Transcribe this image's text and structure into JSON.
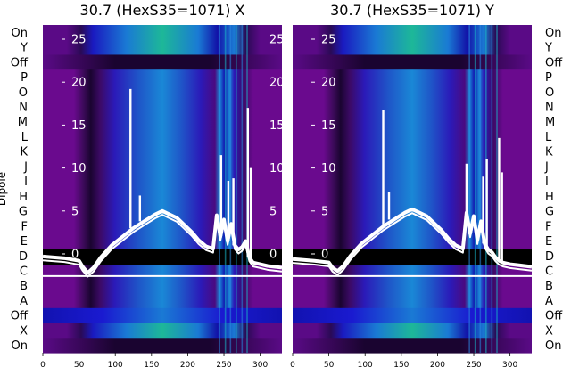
{
  "chart_data": [
    {
      "type": "heatmap",
      "title": "30.7 (HexS35=1071) X",
      "ylabel": "Dipole",
      "x_ticks": [
        0,
        50,
        100,
        150,
        200,
        250,
        300
      ],
      "xlim": [
        0,
        330
      ],
      "inner_y_ticks": [
        0,
        5,
        10,
        15,
        20,
        25
      ],
      "inner_ylim": [
        -1.5,
        27
      ],
      "dipole_labels": [
        "On",
        "Y",
        "Off",
        "P",
        "O",
        "N",
        "M",
        "L",
        "K",
        "J",
        "I",
        "H",
        "G",
        "F",
        "E",
        "D",
        "C",
        "B",
        "A",
        "Off",
        "X",
        "On"
      ],
      "trace_points_x": [
        0,
        30,
        50,
        55,
        62,
        70,
        80,
        95,
        110,
        125,
        140,
        155,
        165,
        175,
        185,
        195,
        205,
        215,
        225,
        235,
        240,
        245,
        250,
        255,
        260,
        265,
        270,
        275,
        280,
        285,
        290,
        300,
        310,
        330
      ],
      "trace_points_y": [
        -0.3,
        -0.5,
        -0.8,
        -1.5,
        -2.2,
        -1.6,
        -0.4,
        1.0,
        2.0,
        3.0,
        3.8,
        4.6,
        5.0,
        4.6,
        4.2,
        3.4,
        2.6,
        1.6,
        0.9,
        0.6,
        4.5,
        2.0,
        4.0,
        1.5,
        3.5,
        1.0,
        0.5,
        0.8,
        1.5,
        -0.4,
        -1.0,
        -1.2,
        -1.4,
        -1.6
      ],
      "spikes": [
        {
          "x": 121,
          "y": 19.2
        },
        {
          "x": 134,
          "y": 6.8
        },
        {
          "x": 246,
          "y": 11.5
        },
        {
          "x": 256,
          "y": 8.5
        },
        {
          "x": 263,
          "y": 8.8
        },
        {
          "x": 283,
          "y": 17.0
        },
        {
          "x": 287,
          "y": 10.0
        }
      ]
    },
    {
      "type": "heatmap",
      "title": "30.7 (HexS35=1071) Y",
      "x_ticks": [
        0,
        50,
        100,
        150,
        200,
        250,
        300
      ],
      "xlim": [
        0,
        330
      ],
      "inner_y_ticks": [
        0,
        5,
        10,
        15,
        20,
        25
      ],
      "inner_ylim": [
        -1.5,
        27
      ],
      "dipole_labels": [
        "On",
        "Y",
        "Off",
        "P",
        "O",
        "N",
        "M",
        "L",
        "K",
        "J",
        "I",
        "H",
        "G",
        "F",
        "E",
        "D",
        "C",
        "B",
        "A",
        "Off",
        "X",
        "On"
      ],
      "trace_points_x": [
        0,
        30,
        50,
        55,
        62,
        70,
        80,
        95,
        110,
        125,
        140,
        155,
        165,
        175,
        185,
        195,
        205,
        215,
        225,
        235,
        240,
        245,
        250,
        255,
        260,
        265,
        270,
        275,
        280,
        285,
        290,
        300,
        310,
        330
      ],
      "trace_points_y": [
        -0.6,
        -0.8,
        -1.0,
        -1.6,
        -2.0,
        -1.4,
        -0.2,
        1.2,
        2.2,
        3.2,
        4.0,
        4.8,
        5.2,
        4.8,
        4.4,
        3.6,
        2.8,
        1.8,
        1.0,
        0.6,
        4.8,
        2.4,
        4.4,
        1.6,
        3.8,
        1.2,
        0.5,
        0.2,
        -0.4,
        -0.8,
        -1.0,
        -1.2,
        -1.3,
        -1.5
      ],
      "spikes": [
        {
          "x": 125,
          "y": 16.8
        },
        {
          "x": 133,
          "y": 7.2
        },
        {
          "x": 240,
          "y": 10.5
        },
        {
          "x": 263,
          "y": 9.0
        },
        {
          "x": 268,
          "y": 11.0
        },
        {
          "x": 285,
          "y": 13.5
        },
        {
          "x": 289,
          "y": 9.5
        }
      ]
    }
  ],
  "colors": {
    "trace": "#ffffff",
    "zero_band": "#000000",
    "separator": "#ffffff",
    "purple": "#6a0a8e",
    "dark": "#1c0630",
    "blue": "#1e63c8",
    "cyan": "#12a6c0",
    "green": "#1fb48a",
    "navy": "#1212b0"
  }
}
